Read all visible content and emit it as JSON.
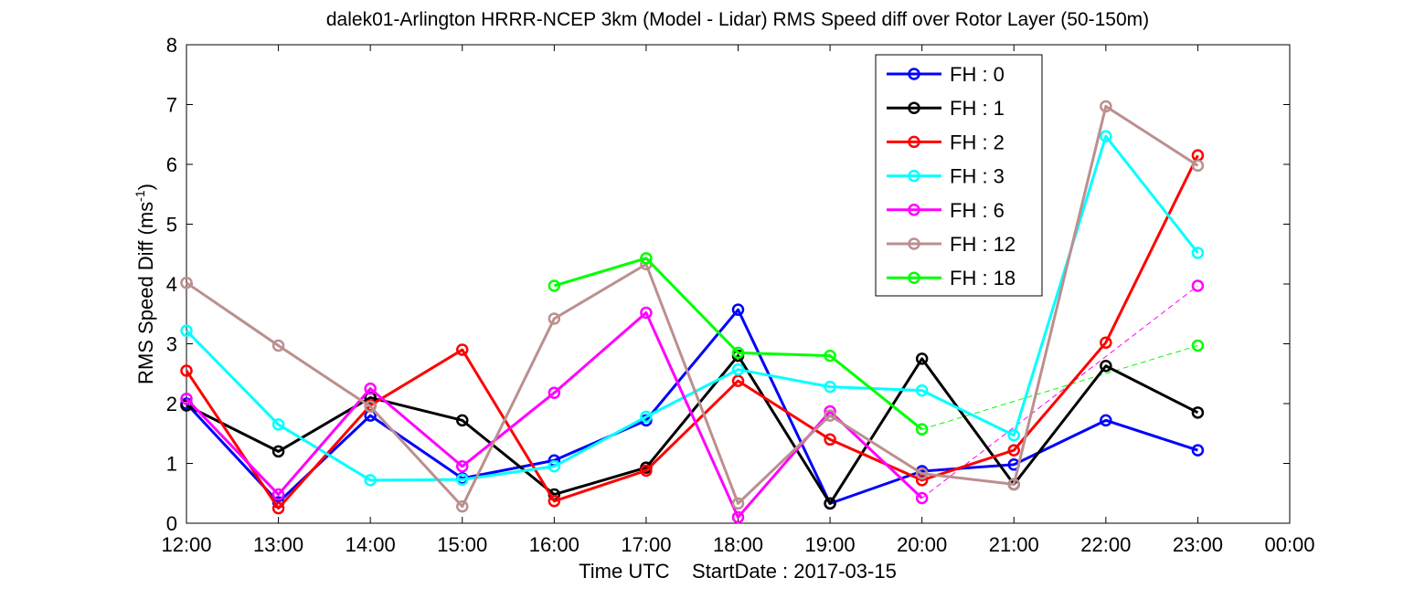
{
  "chart_data": {
    "type": "line",
    "title": "dalek01-Arlington HRRR-NCEP 3km (Model - Lidar) RMS Speed diff over Rotor Layer (50-150m)",
    "ylabel_main": "RMS Speed Diff (ms",
    "ylabel_sup": "-1",
    "ylabel_close": ")",
    "xlabel": "Time UTC    StartDate : 2017-03-15",
    "x_ticks": [
      "12:00",
      "13:00",
      "14:00",
      "15:00",
      "16:00",
      "17:00",
      "18:00",
      "19:00",
      "20:00",
      "21:00",
      "22:00",
      "23:00",
      "00:00"
    ],
    "y_ticks": [
      "0",
      "1",
      "2",
      "3",
      "4",
      "5",
      "6",
      "7",
      "8"
    ],
    "ylim": [
      0,
      8
    ],
    "xlim": [
      0,
      12
    ],
    "grid": false,
    "legend_position": "top-right",
    "series": [
      {
        "name": "FH : 0",
        "color": "#0000ff",
        "values": [
          2.0,
          0.35,
          1.8,
          0.75,
          1.05,
          1.72,
          3.57,
          0.33,
          0.87,
          0.98,
          1.72,
          1.22
        ]
      },
      {
        "name": "FH : 1",
        "color": "#000000",
        "values": [
          1.97,
          1.2,
          2.1,
          1.72,
          0.48,
          0.93,
          2.8,
          0.33,
          2.75,
          0.65,
          2.63,
          1.85
        ]
      },
      {
        "name": "FH : 2",
        "color": "#ff0000",
        "values": [
          2.55,
          0.25,
          1.97,
          2.9,
          0.37,
          0.88,
          2.38,
          1.4,
          0.72,
          1.22,
          3.02,
          6.15
        ]
      },
      {
        "name": "FH : 3",
        "color": "#00ffff",
        "values": [
          3.22,
          1.65,
          0.72,
          0.73,
          0.95,
          1.78,
          2.57,
          2.28,
          2.22,
          1.47,
          6.47,
          4.52
        ]
      },
      {
        "name": "FH : 6",
        "color": "#ff00ff",
        "values": [
          2.08,
          0.48,
          2.25,
          0.95,
          2.18,
          3.52,
          0.1,
          1.87,
          0.42,
          null,
          null,
          3.97
        ]
      },
      {
        "name": "FH : 12",
        "color": "#bc8f8f",
        "values": [
          4.02,
          2.97,
          1.95,
          0.28,
          3.42,
          4.33,
          0.33,
          1.8,
          0.83,
          0.65,
          6.97,
          5.98
        ]
      },
      {
        "name": "FH : 18",
        "color": "#00ff00",
        "values": [
          null,
          null,
          null,
          null,
          3.97,
          4.43,
          2.85,
          2.8,
          1.57,
          null,
          null,
          2.97
        ]
      }
    ],
    "dashed_connectors": [
      {
        "series": "FH : 6",
        "from_x": 8,
        "to_x": 11
      },
      {
        "series": "FH : 18",
        "from_x": 8,
        "to_x": 11
      }
    ]
  }
}
